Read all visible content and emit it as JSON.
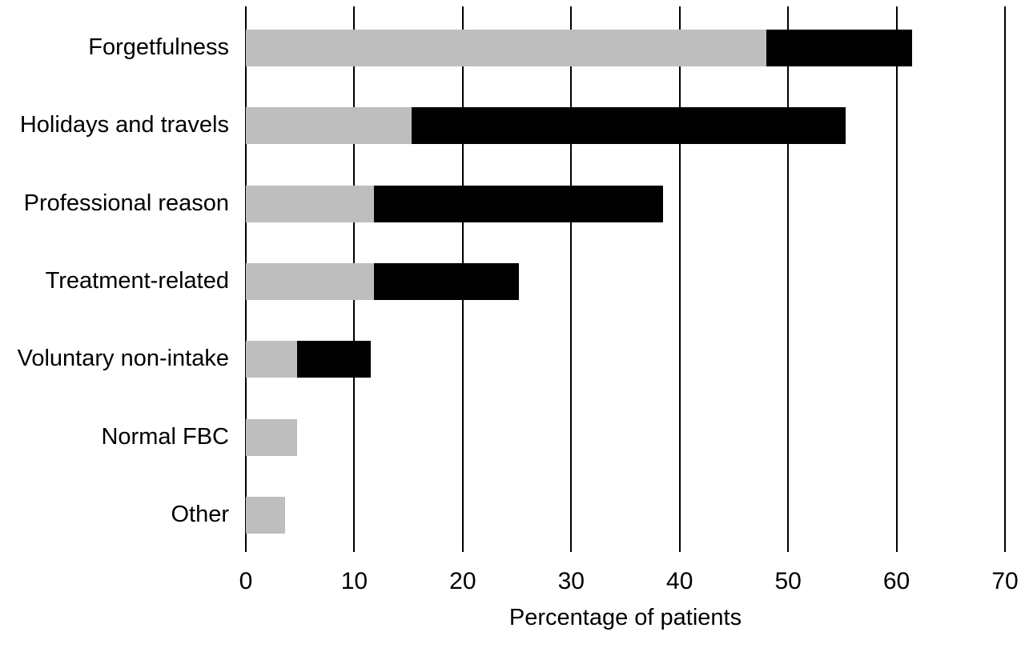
{
  "figure": {
    "background": "#ffffff",
    "text_color": "#000000",
    "gridline_color": "#000000"
  },
  "chart_data": {
    "type": "bar",
    "orientation": "horizontal",
    "stacked": true,
    "title": "",
    "xlabel": "Percentage of patients",
    "ylabel": "",
    "xlim": [
      0,
      70
    ],
    "xticks": [
      0,
      10,
      20,
      30,
      40,
      50,
      60,
      70
    ],
    "grid": "vertical-gridlines-on",
    "legend": "none",
    "categories": [
      "Forgetfulness",
      "Holidays and travels",
      "Professional reason",
      "Treatment-related",
      "Voluntary non-intake",
      "Normal FBC",
      "Other"
    ],
    "series": [
      {
        "name": "grey-segment",
        "color": "#bebebe",
        "values": [
          48,
          15.3,
          11.8,
          11.8,
          4.7,
          4.7,
          3.6
        ]
      },
      {
        "name": "black-segment",
        "color": "#000000",
        "values": [
          13.4,
          40,
          26.7,
          13.4,
          6.8,
          0,
          0
        ]
      }
    ]
  }
}
